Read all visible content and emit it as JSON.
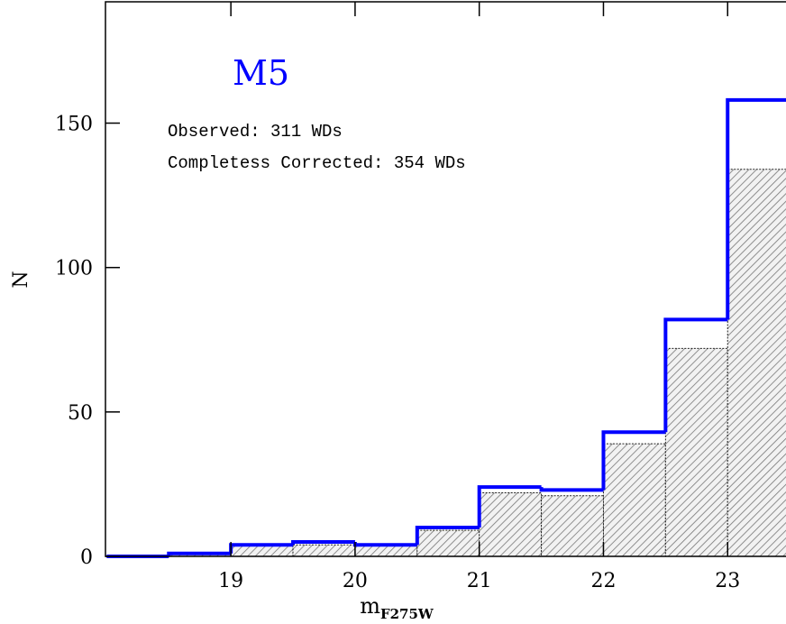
{
  "chart_data": {
    "type": "histogram",
    "title": "M5",
    "title_color": "#0000ff",
    "annotations": [
      "Observed: 311 WDs",
      "Completess Corrected: 354 WDs"
    ],
    "xlabel": "m",
    "xlabel_subscript": "F275W",
    "ylabel": "N",
    "bins": [
      18,
      18.5,
      19,
      19.5,
      20,
      20.5,
      21,
      21.5,
      22,
      22.5,
      23,
      23.5
    ],
    "series": [
      {
        "name": "Observed",
        "color": "#555555",
        "style": "hatched",
        "values": [
          0,
          1,
          4,
          4,
          4,
          9,
          22,
          21,
          39,
          72,
          134
        ]
      },
      {
        "name": "Completess Corrected",
        "color": "#0000ff",
        "style": "step",
        "values": [
          0,
          1,
          4,
          5,
          4,
          10,
          24,
          23,
          43,
          82,
          158
        ]
      }
    ],
    "xlim": [
      17.99,
      23.47
    ],
    "ylim": [
      0,
      192
    ],
    "xticks": [
      19,
      20,
      21,
      22,
      23
    ],
    "yticks": [
      0,
      50,
      100,
      150
    ]
  }
}
